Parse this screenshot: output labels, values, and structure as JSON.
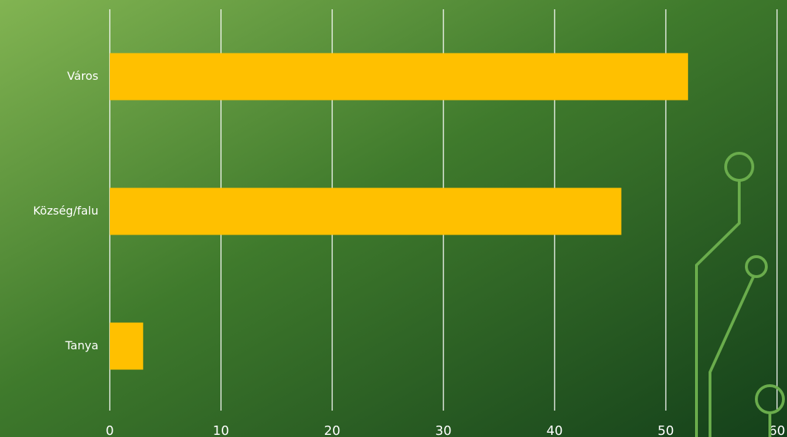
{
  "chart_data": {
    "type": "barh",
    "categories": [
      "Város",
      "Község/falu",
      "Tanya"
    ],
    "values": [
      52,
      46,
      3
    ],
    "color": "#ffc000",
    "xlim": [
      0,
      60
    ],
    "xticks": [
      0,
      10,
      20,
      30,
      40,
      50,
      60
    ],
    "grid": true
  }
}
